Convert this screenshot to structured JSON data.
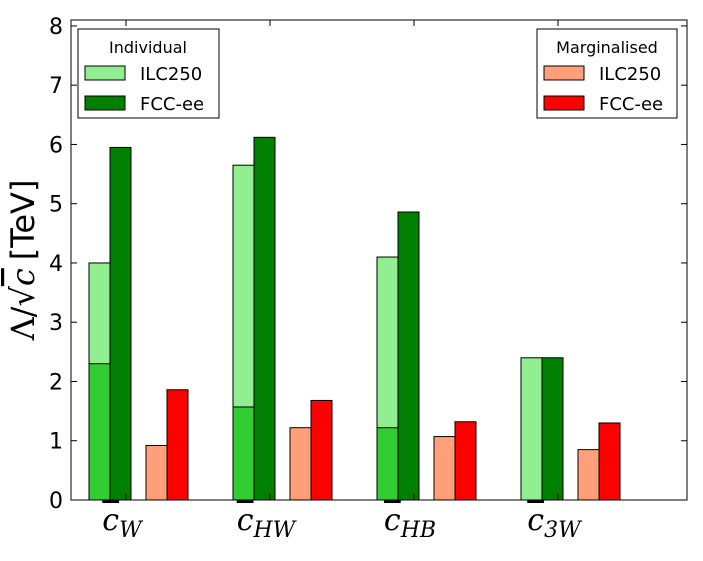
{
  "chart_data": {
    "type": "bar",
    "title": "",
    "xlabel": "",
    "ylabel": {
      "lambda": "Λ",
      "slash": "/",
      "sqrt": "√",
      "c": "c",
      "unit": "[TeV]"
    },
    "ylim": [
      0,
      8.1
    ],
    "yticks": [
      "0",
      "1",
      "2",
      "3",
      "4",
      "5",
      "6",
      "7",
      "8"
    ],
    "categories": [
      {
        "base": "c",
        "sub": "W"
      },
      {
        "base": "c",
        "sub": "HW"
      },
      {
        "base": "c",
        "sub": "HB"
      },
      {
        "base": "c",
        "sub": "3W"
      }
    ],
    "series": [
      {
        "name": "ILC250",
        "group": "Individual",
        "color": "#90ee90",
        "values": [
          4.0,
          5.65,
          4.1,
          2.4
        ],
        "inner_values": [
          2.3,
          1.57,
          1.22,
          null
        ],
        "inner_color": "#32cd32"
      },
      {
        "name": "FCC-ee",
        "group": "Individual",
        "color": "#008000",
        "values": [
          5.95,
          6.12,
          4.86,
          2.4
        ]
      },
      {
        "name": "ILC250",
        "group": "Marginalised",
        "color": "#ffa07a",
        "values": [
          0.92,
          1.22,
          1.07,
          0.85
        ]
      },
      {
        "name": "FCC-ee",
        "group": "Marginalised",
        "color": "#ff0000",
        "values": [
          1.86,
          1.68,
          1.32,
          1.3
        ]
      }
    ],
    "legends": [
      {
        "title": "Individual",
        "position": "top-left",
        "entries": [
          {
            "label": "ILC250",
            "color": "#90ee90"
          },
          {
            "label": "FCC-ee",
            "color": "#008000"
          }
        ]
      },
      {
        "title": "Marginalised",
        "position": "top-right",
        "entries": [
          {
            "label": "ILC250",
            "color": "#ffa07a"
          },
          {
            "label": "FCC-ee",
            "color": "#ff0000"
          }
        ]
      }
    ]
  }
}
